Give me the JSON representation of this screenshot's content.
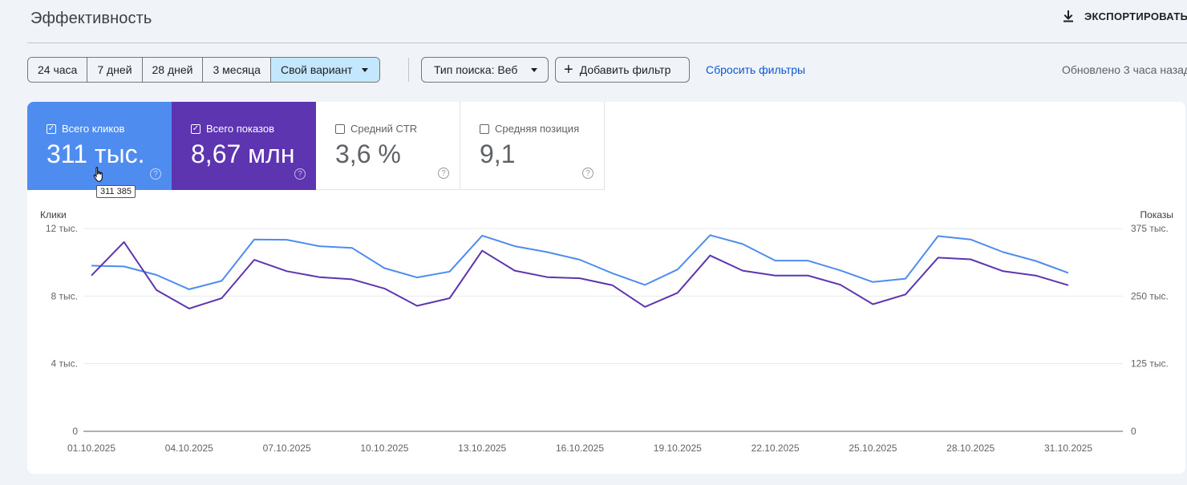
{
  "header": {
    "title": "Эффективность",
    "export_label": "ЭКСПОРТИРОВАТЬ",
    "export_icon": "download-icon"
  },
  "filters": {
    "ranges": [
      {
        "label": "24 часа",
        "active": false
      },
      {
        "label": "7 дней",
        "active": false
      },
      {
        "label": "28 дней",
        "active": false
      },
      {
        "label": "3 месяца",
        "active": false
      },
      {
        "label": "Свой вариант",
        "active": true
      }
    ],
    "search_type": "Тип поиска: Веб",
    "add_filter": "Добавить фильтр",
    "reset": "Сбросить фильтры",
    "updated": "Обновлено 3 часа назад"
  },
  "metrics": {
    "clicks": {
      "label": "Всего кликов",
      "value": "311 тыс.",
      "checked": true,
      "color": "#4e8cef"
    },
    "impressions": {
      "label": "Всего показов",
      "value": "8,67 млн",
      "checked": true,
      "color": "#5e35b1"
    },
    "ctr": {
      "label": "Средний CTR",
      "value": "3,6 %",
      "checked": false
    },
    "position": {
      "label": "Средняя позиция",
      "value": "9,1",
      "checked": false
    }
  },
  "tooltip": {
    "text": "311 385"
  },
  "chart_data": {
    "type": "line",
    "y_left_label": "Клики",
    "y_right_label": "Показы",
    "y_left_ticks": [
      "0",
      "4 тыс.",
      "8 тыс.",
      "12 тыс."
    ],
    "y_right_ticks": [
      "0",
      "125 тыс.",
      "250 тыс.",
      "375 тыс."
    ],
    "ylim_left": [
      0,
      12000
    ],
    "ylim_right": [
      0,
      375000
    ],
    "grid": true,
    "x_tick_labels": [
      "01.10.2025",
      "04.10.2025",
      "07.10.2025",
      "10.10.2025",
      "13.10.2025",
      "16.10.2025",
      "19.10.2025",
      "22.10.2025",
      "25.10.2025",
      "28.10.2025",
      "31.10.2025"
    ],
    "x": [
      "01.10.2025",
      "02.10.2025",
      "03.10.2025",
      "04.10.2025",
      "05.10.2025",
      "06.10.2025",
      "07.10.2025",
      "08.10.2025",
      "09.10.2025",
      "10.10.2025",
      "11.10.2025",
      "12.10.2025",
      "13.10.2025",
      "14.10.2025",
      "15.10.2025",
      "16.10.2025",
      "17.10.2025",
      "18.10.2025",
      "19.10.2025",
      "20.10.2025",
      "21.10.2025",
      "22.10.2025",
      "23.10.2025",
      "24.10.2025",
      "25.10.2025",
      "26.10.2025",
      "27.10.2025",
      "28.10.2025",
      "29.10.2025",
      "30.10.2025",
      "31.10.2025"
    ],
    "series": [
      {
        "name": "Клики",
        "axis": "left",
        "color": "#4e8cef",
        "values": [
          9800,
          9750,
          9250,
          8400,
          8900,
          11350,
          11330,
          10950,
          10850,
          9650,
          9100,
          9450,
          11580,
          10950,
          10600,
          10150,
          9350,
          8660,
          9570,
          11600,
          11080,
          10100,
          10100,
          9520,
          8830,
          9030,
          11550,
          11350,
          10600,
          10080,
          9370
        ]
      },
      {
        "name": "Показы",
        "axis": "right",
        "color": "#5e35b1",
        "values": [
          288000,
          350000,
          261000,
          227000,
          246000,
          317000,
          296000,
          285000,
          281000,
          264000,
          232000,
          246000,
          334000,
          297000,
          285000,
          283000,
          270000,
          230000,
          256000,
          325000,
          297000,
          288000,
          288000,
          271000,
          235000,
          253000,
          321000,
          318000,
          296000,
          288000,
          270000
        ]
      }
    ]
  }
}
